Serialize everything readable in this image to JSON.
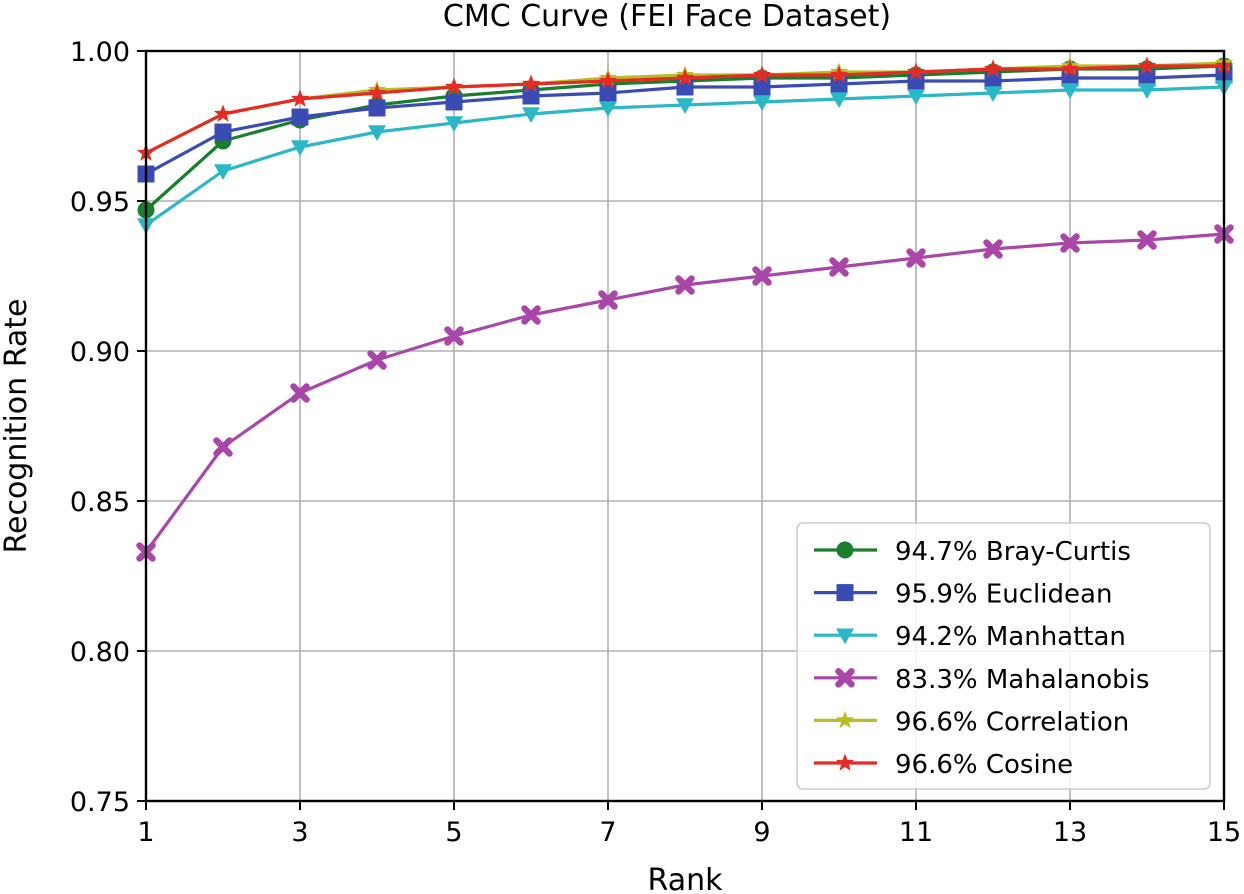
{
  "chart_data": {
    "type": "line",
    "title": "CMC Curve (FEI Face Dataset)",
    "xlabel": "Rank",
    "ylabel": "Recognition Rate",
    "xlim": [
      1,
      15
    ],
    "ylim": [
      0.75,
      1.0
    ],
    "xticks": [
      1,
      3,
      5,
      7,
      9,
      11,
      13,
      15
    ],
    "xtick_labels": [
      "1",
      "3",
      "5",
      "7",
      "9",
      "11",
      "13",
      "15"
    ],
    "yticks": [
      0.75,
      0.8,
      0.85,
      0.9,
      0.95,
      1.0
    ],
    "ytick_labels": [
      "0.75",
      "0.80",
      "0.85",
      "0.90",
      "0.95",
      "1.00"
    ],
    "grid": true,
    "legend_position": "lower-right",
    "x": [
      1,
      2,
      3,
      4,
      5,
      6,
      7,
      8,
      9,
      10,
      11,
      12,
      13,
      14,
      15
    ],
    "series": [
      {
        "name": "94.7% Bray-Curtis",
        "color": "#1a7f2c",
        "marker": "circle",
        "values": [
          0.947,
          0.97,
          0.977,
          0.982,
          0.985,
          0.987,
          0.989,
          0.99,
          0.991,
          0.991,
          0.992,
          0.993,
          0.994,
          0.994,
          0.995
        ]
      },
      {
        "name": "95.9% Euclidean",
        "color": "#3a4cb4",
        "marker": "square",
        "values": [
          0.959,
          0.973,
          0.978,
          0.981,
          0.983,
          0.985,
          0.986,
          0.988,
          0.988,
          0.989,
          0.99,
          0.99,
          0.991,
          0.991,
          0.992
        ]
      },
      {
        "name": "94.2% Manhattan",
        "color": "#2ab7c6",
        "marker": "triangle-down",
        "values": [
          0.942,
          0.96,
          0.968,
          0.973,
          0.976,
          0.979,
          0.981,
          0.982,
          0.983,
          0.984,
          0.985,
          0.986,
          0.987,
          0.987,
          0.988
        ]
      },
      {
        "name": "83.3% Mahalanobis",
        "color": "#a847a8",
        "marker": "x-filled",
        "values": [
          0.833,
          0.868,
          0.886,
          0.897,
          0.905,
          0.912,
          0.917,
          0.922,
          0.925,
          0.928,
          0.931,
          0.934,
          0.936,
          0.937,
          0.939
        ]
      },
      {
        "name": "96.6% Correlation",
        "color": "#b9bd25",
        "marker": "star",
        "values": [
          0.966,
          0.979,
          0.984,
          0.987,
          0.988,
          0.989,
          0.991,
          0.992,
          0.992,
          0.993,
          0.993,
          0.994,
          0.995,
          0.995,
          0.996
        ]
      },
      {
        "name": "96.6% Cosine",
        "color": "#e52b25",
        "marker": "star",
        "values": [
          0.966,
          0.979,
          0.984,
          0.986,
          0.988,
          0.989,
          0.99,
          0.991,
          0.992,
          0.992,
          0.993,
          0.994,
          0.994,
          0.995,
          0.995
        ]
      }
    ]
  }
}
